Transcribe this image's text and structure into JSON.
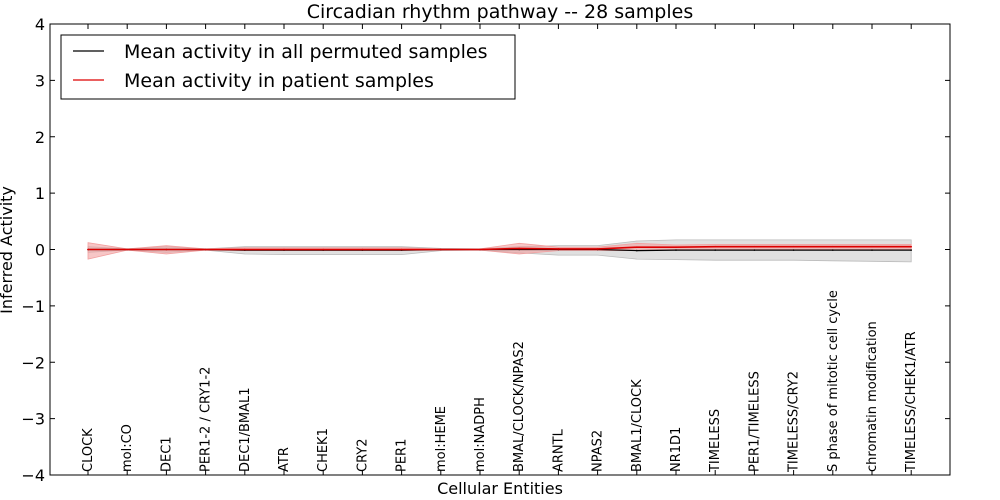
{
  "chart_data": {
    "type": "line",
    "title": "Circadian rhythm pathway -- 28 samples",
    "xlabel": "Cellular Entities",
    "ylabel": "Inferred Activity",
    "ylim": [
      -4,
      4
    ],
    "yticks": [
      -4,
      -3,
      -2,
      -1,
      0,
      1,
      2,
      3,
      4
    ],
    "ytick_labels": [
      "−4",
      "−3",
      "−2",
      "−1",
      "0",
      "1",
      "2",
      "3",
      "4"
    ],
    "legend_position": "top-left",
    "categories": [
      "CLOCK",
      "mol:CO",
      "DEC1",
      "PER1-2 / CRY1-2",
      "DEC1/BMAL1",
      "ATR",
      "CHEK1",
      "CRY2",
      "PER1",
      "mol:HEME",
      "mol:NADPH",
      "BMAL/CLOCK/NPAS2",
      "ARNTL",
      "NPAS2",
      "BMAL1/CLOCK",
      "NR1D1",
      "TIMELESS",
      "PER1/TIMELESS",
      "TIMELESS/CRY2",
      "S phase of mitotic cell cycle",
      "chromatin modification",
      "TIMELESS/CHEK1/ATR"
    ],
    "series": [
      {
        "name": "Mean activity in all permuted samples",
        "color": "#000000",
        "band_color": "#bbbbbb",
        "values": [
          0.0,
          0.0,
          0.0,
          0.0,
          -0.01,
          -0.01,
          -0.01,
          -0.01,
          -0.01,
          0.0,
          0.0,
          0.0,
          0.0,
          0.0,
          -0.02,
          -0.01,
          -0.01,
          -0.01,
          -0.01,
          -0.01,
          -0.01,
          -0.01
        ],
        "band_lower": [
          -0.05,
          -0.01,
          -0.05,
          -0.01,
          -0.08,
          -0.09,
          -0.09,
          -0.09,
          -0.09,
          -0.02,
          -0.01,
          -0.06,
          -0.1,
          -0.1,
          -0.17,
          -0.18,
          -0.19,
          -0.19,
          -0.19,
          -0.2,
          -0.21,
          -0.22
        ],
        "band_upper": [
          0.05,
          0.01,
          0.05,
          0.01,
          0.05,
          0.05,
          0.05,
          0.05,
          0.05,
          0.02,
          0.01,
          0.05,
          0.07,
          0.07,
          0.15,
          0.17,
          0.17,
          0.17,
          0.17,
          0.17,
          0.17,
          0.17
        ]
      },
      {
        "name": "Mean activity in patient samples",
        "color": "#dd0000",
        "band_color": "#f2a0a0",
        "values": [
          0.0,
          0.0,
          0.0,
          0.0,
          0.0,
          0.0,
          0.0,
          0.0,
          0.0,
          0.0,
          0.0,
          0.02,
          0.01,
          0.01,
          0.04,
          0.04,
          0.05,
          0.05,
          0.05,
          0.05,
          0.05,
          0.05
        ],
        "band_lower": [
          -0.17,
          -0.01,
          -0.08,
          -0.01,
          -0.02,
          -0.02,
          -0.02,
          -0.02,
          -0.02,
          -0.01,
          -0.01,
          -0.08,
          -0.02,
          -0.02,
          -0.02,
          0.0,
          0.0,
          0.0,
          0.0,
          0.0,
          0.0,
          0.0
        ],
        "band_upper": [
          0.12,
          0.01,
          0.07,
          0.01,
          0.03,
          0.03,
          0.03,
          0.03,
          0.03,
          0.01,
          0.01,
          0.11,
          0.04,
          0.04,
          0.11,
          0.08,
          0.09,
          0.09,
          0.09,
          0.09,
          0.09,
          0.09
        ]
      }
    ]
  }
}
